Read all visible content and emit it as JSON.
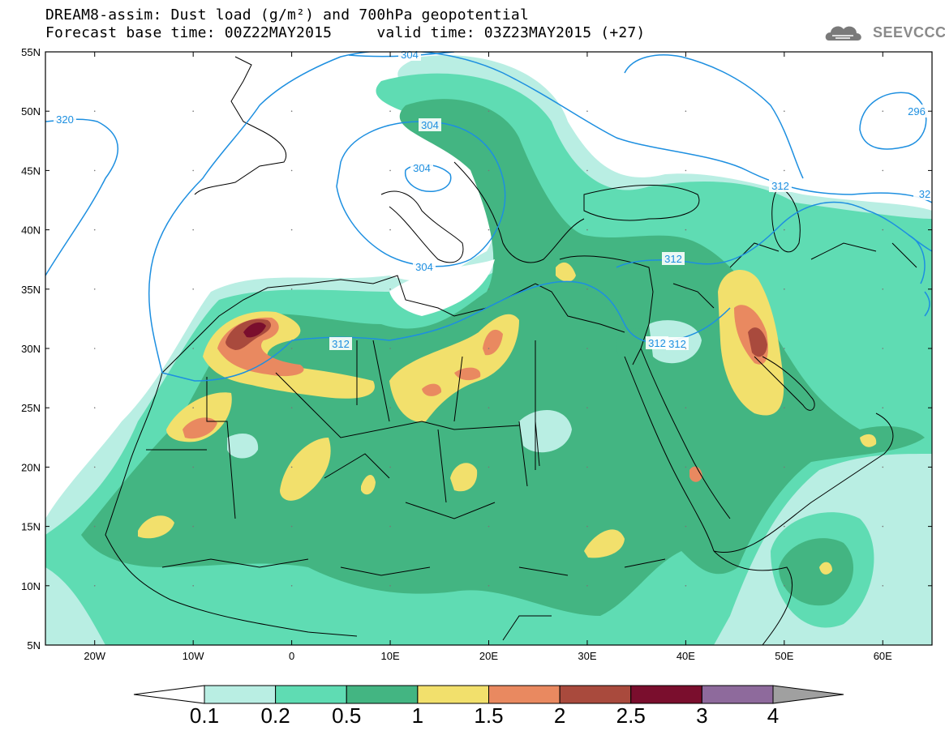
{
  "header": {
    "title_line1": "DREAM8-assim: Dust load (g/m²) and 700hPa geopotential",
    "title_line2": "Forecast base time: 00Z22MAY2015     valid time: 03Z23MAY2015 (+27)",
    "logo_text": "SEEVCCC"
  },
  "map": {
    "lat_labels": [
      "55N",
      "50N",
      "45N",
      "40N",
      "35N",
      "30N",
      "25N",
      "20N",
      "15N",
      "10N",
      "5N"
    ],
    "lon_labels": [
      "20W",
      "10W",
      "0",
      "10E",
      "20E",
      "30E",
      "40E",
      "50E",
      "60E"
    ],
    "contour_labels": [
      "304",
      "304",
      "320",
      "312",
      "304",
      "312",
      "312",
      "296",
      "312",
      "304",
      "312",
      "32"
    ]
  },
  "colorbar": {
    "labels": [
      "0.1",
      "0.2",
      "0.5",
      "1",
      "1.5",
      "2",
      "2.5",
      "3",
      "4"
    ],
    "colors": [
      "#ffffff",
      "#b9eee3",
      "#5fdcb3",
      "#43b582",
      "#f2e06c",
      "#e98960",
      "#a94a3d",
      "#7a0e2d",
      "#8e6a9c",
      "#a0a0a0"
    ]
  },
  "palette": {
    "contour": "#1d8fe0",
    "coast": "#000000",
    "dust_01": "#b9eee3",
    "dust_02": "#5fdcb3",
    "dust_05": "#43b582",
    "dust_1": "#f2e06c",
    "dust_15": "#e98960",
    "dust_2": "#a94a3d",
    "dust_25": "#7a0e2d"
  }
}
